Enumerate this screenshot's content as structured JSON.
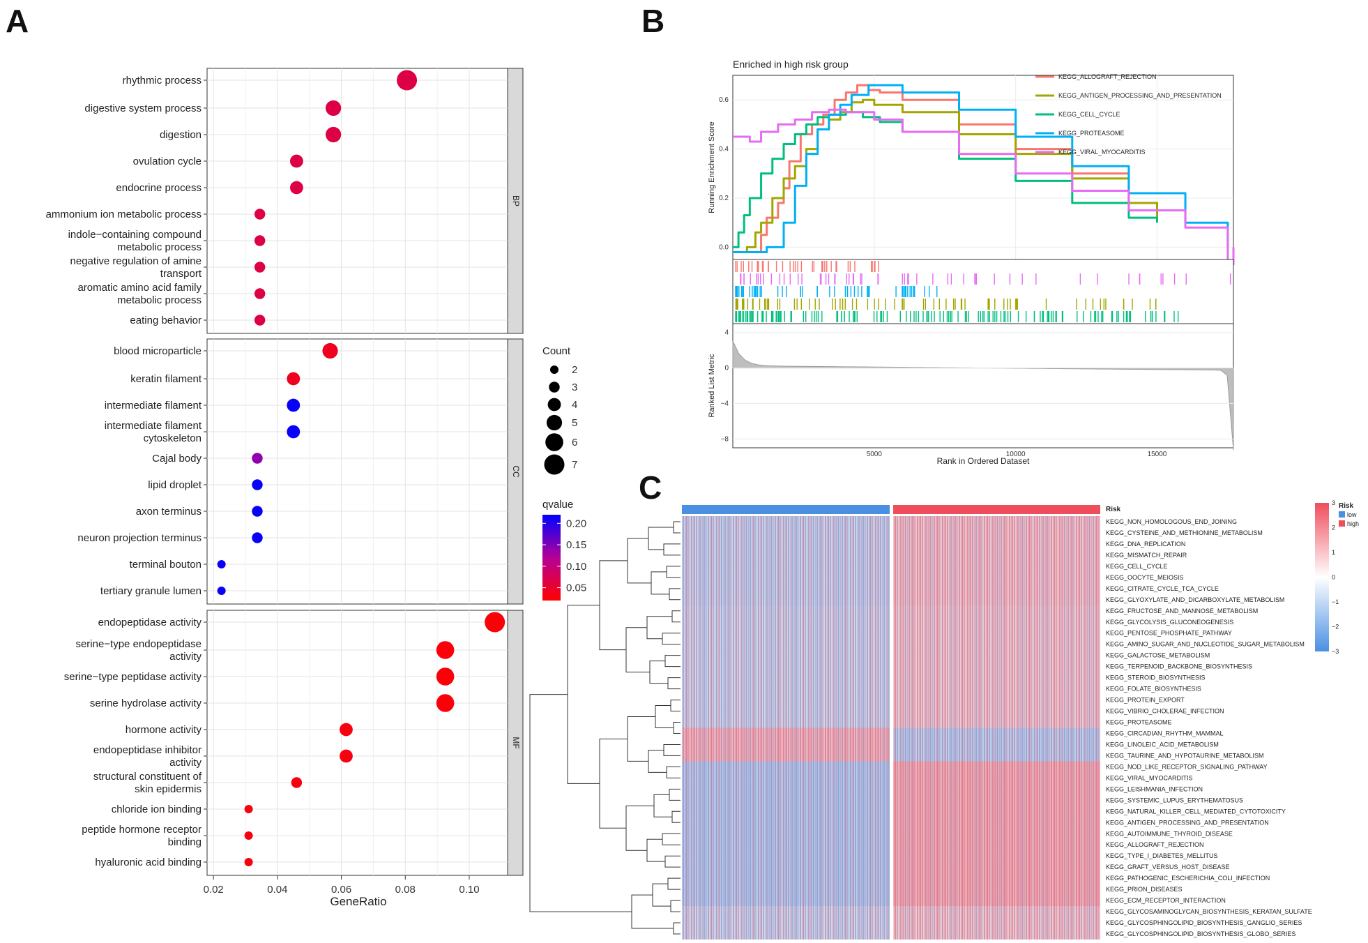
{
  "panels": {
    "a": "A",
    "b": "B",
    "c": "C"
  },
  "chart_data": [
    {
      "type": "scatter",
      "id": "go-dotplot",
      "xlabel": "GeneRatio",
      "xlim": [
        0.018,
        0.112
      ],
      "xticks": [
        0.02,
        0.04,
        0.06,
        0.08,
        0.1
      ],
      "xtick_labels": [
        "0.02",
        "0.04",
        "0.06",
        "0.08",
        "0.10"
      ],
      "size_legend": {
        "title": "Count",
        "values": [
          2,
          3,
          4,
          5,
          6,
          7
        ],
        "labels": [
          "2",
          "3",
          "4",
          "5",
          "6",
          "7"
        ]
      },
      "color_legend": {
        "title": "qvalue",
        "range": [
          0.02,
          0.22
        ],
        "ticks": [
          0.2,
          0.15,
          0.1,
          0.05
        ],
        "tick_labels": [
          "0.20",
          "0.15",
          "0.10",
          "0.05"
        ],
        "low_color": "#FF0000",
        "high_color": "#0000FF"
      },
      "facets": [
        {
          "label": "BP",
          "terms": [
            {
              "lines": [
                "rhythmic process"
              ],
              "x": 0.0805,
              "count": 7,
              "q": 0.065
            },
            {
              "lines": [
                "digestive system process"
              ],
              "x": 0.0575,
              "count": 5,
              "q": 0.065
            },
            {
              "lines": [
                "digestion"
              ],
              "x": 0.0575,
              "count": 5,
              "q": 0.065
            },
            {
              "lines": [
                "ovulation cycle"
              ],
              "x": 0.046,
              "count": 4,
              "q": 0.065
            },
            {
              "lines": [
                "endocrine process"
              ],
              "x": 0.046,
              "count": 4,
              "q": 0.065
            },
            {
              "lines": [
                "ammonium ion metabolic process"
              ],
              "x": 0.0345,
              "count": 3,
              "q": 0.065
            },
            {
              "lines": [
                "indole−containing compound",
                "metabolic process"
              ],
              "x": 0.0345,
              "count": 3,
              "q": 0.065
            },
            {
              "lines": [
                "negative regulation of amine",
                "transport"
              ],
              "x": 0.0345,
              "count": 3,
              "q": 0.065
            },
            {
              "lines": [
                "aromatic amino acid family",
                "metabolic process"
              ],
              "x": 0.0345,
              "count": 3,
              "q": 0.065
            },
            {
              "lines": [
                "eating behavior"
              ],
              "x": 0.0345,
              "count": 3,
              "q": 0.065
            }
          ]
        },
        {
          "label": "CC",
          "terms": [
            {
              "lines": [
                "blood microparticle"
              ],
              "x": 0.0565,
              "count": 5,
              "q": 0.04
            },
            {
              "lines": [
                "keratin filament"
              ],
              "x": 0.045,
              "count": 4,
              "q": 0.04
            },
            {
              "lines": [
                "intermediate filament"
              ],
              "x": 0.045,
              "count": 4,
              "q": 0.215
            },
            {
              "lines": [
                "intermediate filament",
                "cytoskeleton"
              ],
              "x": 0.045,
              "count": 4,
              "q": 0.215
            },
            {
              "lines": [
                "Cajal body"
              ],
              "x": 0.0337,
              "count": 3,
              "q": 0.14
            },
            {
              "lines": [
                "lipid droplet"
              ],
              "x": 0.0337,
              "count": 3,
              "q": 0.215
            },
            {
              "lines": [
                "axon terminus"
              ],
              "x": 0.0337,
              "count": 3,
              "q": 0.215
            },
            {
              "lines": [
                "neuron projection terminus"
              ],
              "x": 0.0337,
              "count": 3,
              "q": 0.215
            },
            {
              "lines": [
                "terminal bouton"
              ],
              "x": 0.0225,
              "count": 2,
              "q": 0.215
            },
            {
              "lines": [
                "tertiary granule lumen"
              ],
              "x": 0.0225,
              "count": 2,
              "q": 0.215
            }
          ]
        },
        {
          "label": "MF",
          "terms": [
            {
              "lines": [
                "endopeptidase activity"
              ],
              "x": 0.108,
              "count": 7,
              "q": 0.025
            },
            {
              "lines": [
                "serine−type endopeptidase",
                "activity"
              ],
              "x": 0.0925,
              "count": 6,
              "q": 0.025
            },
            {
              "lines": [
                "serine−type peptidase activity"
              ],
              "x": 0.0925,
              "count": 6,
              "q": 0.025
            },
            {
              "lines": [
                "serine hydrolase activity"
              ],
              "x": 0.0925,
              "count": 6,
              "q": 0.025
            },
            {
              "lines": [
                "hormone activity"
              ],
              "x": 0.0615,
              "count": 4,
              "q": 0.03
            },
            {
              "lines": [
                "endopeptidase inhibitor",
                "activity"
              ],
              "x": 0.0615,
              "count": 4,
              "q": 0.03
            },
            {
              "lines": [
                "structural constituent of",
                "skin epidermis"
              ],
              "x": 0.046,
              "count": 3,
              "q": 0.03
            },
            {
              "lines": [
                "chloride ion binding"
              ],
              "x": 0.031,
              "count": 2,
              "q": 0.03
            },
            {
              "lines": [
                "peptide hormone receptor",
                "binding"
              ],
              "x": 0.031,
              "count": 2,
              "q": 0.03
            },
            {
              "lines": [
                "hyaluronic acid binding"
              ],
              "x": 0.031,
              "count": 2,
              "q": 0.03
            }
          ]
        }
      ]
    },
    {
      "type": "line",
      "id": "gsea-plot",
      "title": "Enriched in high risk group",
      "ylabel": "Running Enrichment Score",
      "xlabel": "Rank in Ordered Dataset",
      "xlim": [
        0,
        17700
      ],
      "ylim": [
        -0.05,
        0.7
      ],
      "xticks": [
        5000,
        10000,
        15000
      ],
      "xtick_labels": [
        "5000",
        "10000",
        "15000"
      ],
      "yticks": [
        0.0,
        0.2,
        0.4,
        0.6
      ],
      "ytick_labels": [
        "0.0",
        "0.2",
        "0.4",
        "0.6"
      ],
      "metric_ylabel": "Ranked List Metric",
      "metric_ylim": [
        -9,
        5
      ],
      "metric_yticks": [
        4,
        0,
        -4,
        -8
      ],
      "metric_ytick_labels": [
        "4",
        "0",
        "−4",
        "−8"
      ],
      "series": [
        {
          "name": "KEGG_ALLOGRAFT_REJECTION",
          "color": "#F8766D",
          "x": [
            0,
            800,
            1000,
            1200,
            1600,
            1800,
            2000,
            2400,
            2800,
            3200,
            3600,
            4000,
            4400,
            4800,
            5200,
            6000,
            8000,
            10000,
            12000,
            14000,
            15000
          ],
          "y": [
            -0.02,
            -0.02,
            0.05,
            0.12,
            0.18,
            0.24,
            0.35,
            0.46,
            0.5,
            0.54,
            0.6,
            0.63,
            0.66,
            0.64,
            0.63,
            0.6,
            0.5,
            0.4,
            0.3,
            0.18,
            0.12
          ]
        },
        {
          "name": "KEGG_ANTIGEN_PROCESSING_AND_PRESENTATION",
          "color": "#A3A500",
          "x": [
            0,
            500,
            800,
            1000,
            1400,
            1800,
            2200,
            2600,
            3000,
            3400,
            3800,
            4200,
            4600,
            5000,
            6000,
            8000,
            10000,
            12000,
            14000,
            15000
          ],
          "y": [
            -0.02,
            0.0,
            0.06,
            0.1,
            0.2,
            0.28,
            0.33,
            0.4,
            0.48,
            0.52,
            0.55,
            0.59,
            0.6,
            0.58,
            0.55,
            0.46,
            0.38,
            0.28,
            0.18,
            0.12
          ]
        },
        {
          "name": "KEGG_CELL_CYCLE",
          "color": "#00BF7D",
          "x": [
            0,
            200,
            400,
            600,
            1000,
            1400,
            1800,
            2200,
            2600,
            3000,
            3400,
            4000,
            4600,
            5200,
            6000,
            8000,
            10000,
            12000,
            14000,
            15000
          ],
          "y": [
            0.0,
            0.06,
            0.13,
            0.2,
            0.3,
            0.36,
            0.42,
            0.46,
            0.5,
            0.53,
            0.54,
            0.55,
            0.53,
            0.51,
            0.47,
            0.36,
            0.27,
            0.18,
            0.12,
            0.1
          ]
        },
        {
          "name": "KEGG_PROTEASOME",
          "color": "#00B0F6",
          "x": [
            0,
            1000,
            1200,
            1800,
            2200,
            2600,
            3000,
            3400,
            3800,
            4200,
            4800,
            6000,
            8000,
            10000,
            12000,
            14000,
            16000,
            17500
          ],
          "y": [
            -0.02,
            -0.02,
            0.0,
            0.1,
            0.25,
            0.38,
            0.48,
            0.54,
            0.58,
            0.62,
            0.66,
            0.63,
            0.56,
            0.45,
            0.33,
            0.22,
            0.1,
            0.0
          ]
        },
        {
          "name": "KEGG_VIRAL_MYOCARDITIS",
          "color": "#E76BF3",
          "x": [
            0,
            600,
            1000,
            1600,
            2200,
            2800,
            3400,
            4000,
            5000,
            6000,
            8000,
            10000,
            12000,
            14000,
            16000,
            17500,
            17700
          ],
          "y": [
            0.45,
            0.43,
            0.47,
            0.5,
            0.52,
            0.55,
            0.56,
            0.55,
            0.52,
            0.47,
            0.38,
            0.3,
            0.23,
            0.15,
            0.08,
            -0.07,
            0.0
          ]
        }
      ]
    },
    {
      "type": "heatmap",
      "id": "ssgsea-heatmap",
      "annotation": {
        "label": "Risk",
        "groups": [
          "low",
          "high"
        ],
        "colors": [
          "#4A90E2",
          "#F04D5C"
        ]
      },
      "color_scale": {
        "min": -3,
        "max": 3,
        "ticks": [
          3,
          2,
          1,
          0,
          -1,
          -2,
          -3
        ],
        "tick_labels": [
          "3",
          "2",
          "1",
          "0",
          "−1",
          "−2",
          "−3"
        ]
      },
      "legend_title": "Risk",
      "rows": [
        "KEGG_NON_HOMOLOGOUS_END_JOINING",
        "KEGG_CYSTEINE_AND_METHIONINE_METABOLISM",
        "KEGG_DNA_REPLICATION",
        "KEGG_MISMATCH_REPAIR",
        "KEGG_CELL_CYCLE",
        "KEGG_OOCYTE_MEIOSIS",
        "KEGG_CITRATE_CYCLE_TCA_CYCLE",
        "KEGG_GLYOXYLATE_AND_DICARBOXYLATE_METABOLISM",
        "KEGG_FRUCTOSE_AND_MANNOSE_METABOLISM",
        "KEGG_GLYCOLYSIS_GLUCONEOGENESIS",
        "KEGG_PENTOSE_PHOSPHATE_PATHWAY",
        "KEGG_AMINO_SUGAR_AND_NUCLEOTIDE_SUGAR_METABOLISM",
        "KEGG_GALACTOSE_METABOLISM",
        "KEGG_TERPENOID_BACKBONE_BIOSYNTHESIS",
        "KEGG_STEROID_BIOSYNTHESIS",
        "KEGG_FOLATE_BIOSYNTHESIS",
        "KEGG_PROTEIN_EXPORT",
        "KEGG_VIBRIO_CHOLERAE_INFECTION",
        "KEGG_PROTEASOME",
        "KEGG_CIRCADIAN_RHYTHM_MAMMAL",
        "KEGG_LINOLEIC_ACID_METABOLISM",
        "KEGG_TAURINE_AND_HYPOTAURINE_METABOLISM",
        "KEGG_NOD_LIKE_RECEPTOR_SIGNALING_PATHWAY",
        "KEGG_VIRAL_MYOCARDITIS",
        "KEGG_LEISHMANIA_INFECTION",
        "KEGG_SYSTEMIC_LUPUS_ERYTHEMATOSUS",
        "KEGG_NATURAL_KILLER_CELL_MEDIATED_CYTOTOXICITY",
        "KEGG_ANTIGEN_PROCESSING_AND_PRESENTATION",
        "KEGG_AUTOIMMUNE_THYROID_DISEASE",
        "KEGG_ALLOGRAFT_REJECTION",
        "KEGG_TYPE_I_DIABETES_MELLITUS",
        "KEGG_GRAFT_VERSUS_HOST_DISEASE",
        "KEGG_PATHOGENIC_ESCHERICHIA_COLI_INFECTION",
        "KEGG_PRION_DISEASES",
        "KEGG_ECM_RECEPTOR_INTERACTION",
        "KEGG_GLYCOSAMINOGLYCAN_BIOSYNTHESIS_KERATAN_SULFATE",
        "KEGG_GLYCOSPHINGOLIPID_BIOSYNTHESIS_GANGLIO_SERIES",
        "KEGG_GLYCOSPHINGOLIPID_BIOSYNTHESIS_GLOBO_SERIES"
      ]
    }
  ]
}
